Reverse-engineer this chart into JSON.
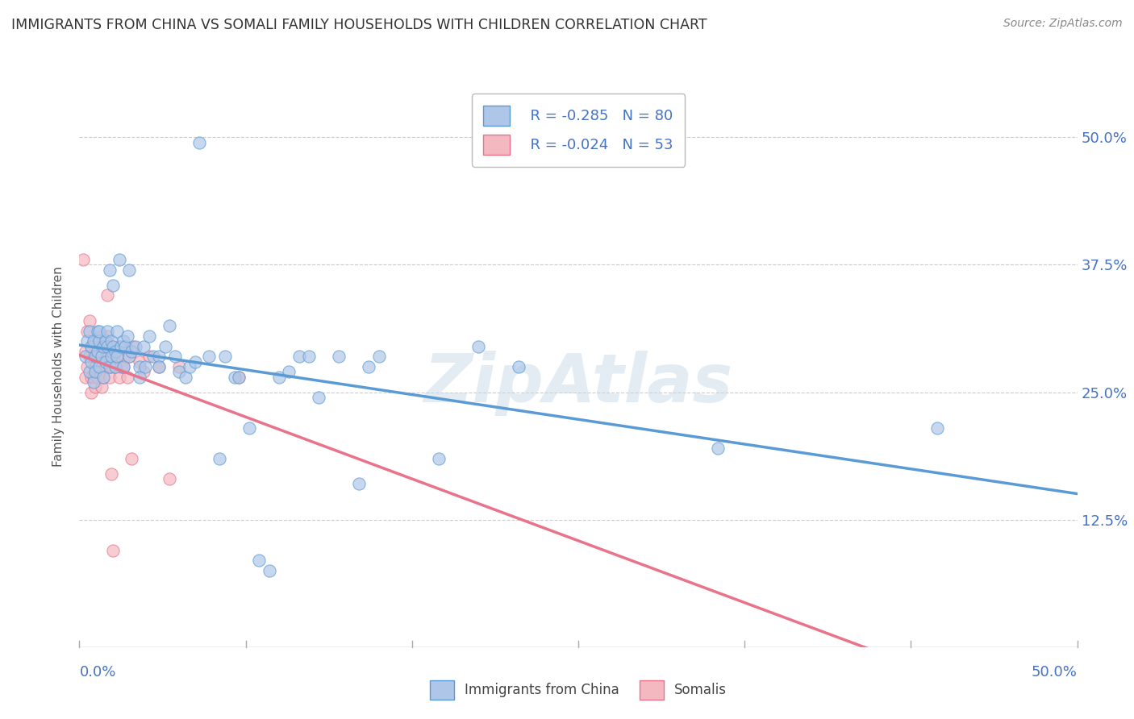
{
  "title": "IMMIGRANTS FROM CHINA VS SOMALI FAMILY HOUSEHOLDS WITH CHILDREN CORRELATION CHART",
  "source": "Source: ZipAtlas.com",
  "ylabel": "Family Households with Children",
  "ytick_vals": [
    0.125,
    0.25,
    0.375,
    0.5
  ],
  "legend_china": {
    "R": -0.285,
    "N": 80
  },
  "legend_somali": {
    "R": -0.024,
    "N": 53
  },
  "xmin": 0.0,
  "xmax": 0.5,
  "ymin": 0.0,
  "ymax": 0.55,
  "china_scatter": [
    [
      0.003,
      0.285
    ],
    [
      0.004,
      0.3
    ],
    [
      0.005,
      0.27
    ],
    [
      0.005,
      0.31
    ],
    [
      0.006,
      0.28
    ],
    [
      0.006,
      0.295
    ],
    [
      0.007,
      0.3
    ],
    [
      0.007,
      0.26
    ],
    [
      0.008,
      0.285
    ],
    [
      0.008,
      0.27
    ],
    [
      0.009,
      0.31
    ],
    [
      0.009,
      0.29
    ],
    [
      0.01,
      0.3
    ],
    [
      0.01,
      0.275
    ],
    [
      0.01,
      0.31
    ],
    [
      0.011,
      0.285
    ],
    [
      0.012,
      0.295
    ],
    [
      0.012,
      0.265
    ],
    [
      0.013,
      0.28
    ],
    [
      0.013,
      0.3
    ],
    [
      0.014,
      0.31
    ],
    [
      0.014,
      0.295
    ],
    [
      0.015,
      0.275
    ],
    [
      0.015,
      0.37
    ],
    [
      0.016,
      0.3
    ],
    [
      0.016,
      0.285
    ],
    [
      0.017,
      0.295
    ],
    [
      0.017,
      0.355
    ],
    [
      0.018,
      0.29
    ],
    [
      0.018,
      0.275
    ],
    [
      0.019,
      0.31
    ],
    [
      0.019,
      0.285
    ],
    [
      0.02,
      0.38
    ],
    [
      0.021,
      0.295
    ],
    [
      0.022,
      0.3
    ],
    [
      0.022,
      0.275
    ],
    [
      0.023,
      0.295
    ],
    [
      0.024,
      0.305
    ],
    [
      0.025,
      0.37
    ],
    [
      0.025,
      0.285
    ],
    [
      0.026,
      0.29
    ],
    [
      0.028,
      0.295
    ],
    [
      0.03,
      0.275
    ],
    [
      0.03,
      0.265
    ],
    [
      0.032,
      0.295
    ],
    [
      0.033,
      0.275
    ],
    [
      0.035,
      0.305
    ],
    [
      0.037,
      0.285
    ],
    [
      0.04,
      0.285
    ],
    [
      0.04,
      0.275
    ],
    [
      0.043,
      0.295
    ],
    [
      0.045,
      0.315
    ],
    [
      0.048,
      0.285
    ],
    [
      0.05,
      0.27
    ],
    [
      0.053,
      0.265
    ],
    [
      0.055,
      0.275
    ],
    [
      0.058,
      0.28
    ],
    [
      0.06,
      0.495
    ],
    [
      0.065,
      0.285
    ],
    [
      0.07,
      0.185
    ],
    [
      0.073,
      0.285
    ],
    [
      0.078,
      0.265
    ],
    [
      0.08,
      0.265
    ],
    [
      0.085,
      0.215
    ],
    [
      0.09,
      0.085
    ],
    [
      0.095,
      0.075
    ],
    [
      0.1,
      0.265
    ],
    [
      0.105,
      0.27
    ],
    [
      0.11,
      0.285
    ],
    [
      0.115,
      0.285
    ],
    [
      0.12,
      0.245
    ],
    [
      0.13,
      0.285
    ],
    [
      0.14,
      0.16
    ],
    [
      0.145,
      0.275
    ],
    [
      0.15,
      0.285
    ],
    [
      0.18,
      0.185
    ],
    [
      0.2,
      0.295
    ],
    [
      0.22,
      0.275
    ],
    [
      0.32,
      0.195
    ],
    [
      0.43,
      0.215
    ]
  ],
  "somali_scatter": [
    [
      0.002,
      0.38
    ],
    [
      0.003,
      0.29
    ],
    [
      0.003,
      0.265
    ],
    [
      0.004,
      0.31
    ],
    [
      0.004,
      0.275
    ],
    [
      0.005,
      0.32
    ],
    [
      0.005,
      0.285
    ],
    [
      0.006,
      0.295
    ],
    [
      0.006,
      0.265
    ],
    [
      0.006,
      0.25
    ],
    [
      0.007,
      0.285
    ],
    [
      0.007,
      0.265
    ],
    [
      0.008,
      0.3
    ],
    [
      0.008,
      0.275
    ],
    [
      0.008,
      0.255
    ],
    [
      0.009,
      0.285
    ],
    [
      0.009,
      0.265
    ],
    [
      0.01,
      0.295
    ],
    [
      0.01,
      0.27
    ],
    [
      0.011,
      0.305
    ],
    [
      0.011,
      0.255
    ],
    [
      0.011,
      0.285
    ],
    [
      0.012,
      0.265
    ],
    [
      0.012,
      0.295
    ],
    [
      0.013,
      0.275
    ],
    [
      0.013,
      0.295
    ],
    [
      0.014,
      0.345
    ],
    [
      0.014,
      0.305
    ],
    [
      0.014,
      0.285
    ],
    [
      0.015,
      0.265
    ],
    [
      0.015,
      0.295
    ],
    [
      0.016,
      0.17
    ],
    [
      0.016,
      0.275
    ],
    [
      0.017,
      0.095
    ],
    [
      0.017,
      0.285
    ],
    [
      0.018,
      0.275
    ],
    [
      0.019,
      0.285
    ],
    [
      0.02,
      0.265
    ],
    [
      0.02,
      0.295
    ],
    [
      0.021,
      0.275
    ],
    [
      0.022,
      0.275
    ],
    [
      0.023,
      0.285
    ],
    [
      0.024,
      0.265
    ],
    [
      0.025,
      0.285
    ],
    [
      0.026,
      0.185
    ],
    [
      0.027,
      0.295
    ],
    [
      0.03,
      0.28
    ],
    [
      0.032,
      0.27
    ],
    [
      0.035,
      0.285
    ],
    [
      0.04,
      0.275
    ],
    [
      0.045,
      0.165
    ],
    [
      0.05,
      0.275
    ],
    [
      0.08,
      0.265
    ]
  ],
  "china_line_color": "#5b9bd5",
  "somali_line_color": "#e8738a",
  "china_scatter_color": "#aec6e8",
  "somali_scatter_color": "#f4b8c1",
  "background_color": "#ffffff",
  "grid_color": "#cccccc",
  "title_color": "#333333",
  "axis_label_color": "#4472c4",
  "watermark": "ZipAtlas"
}
